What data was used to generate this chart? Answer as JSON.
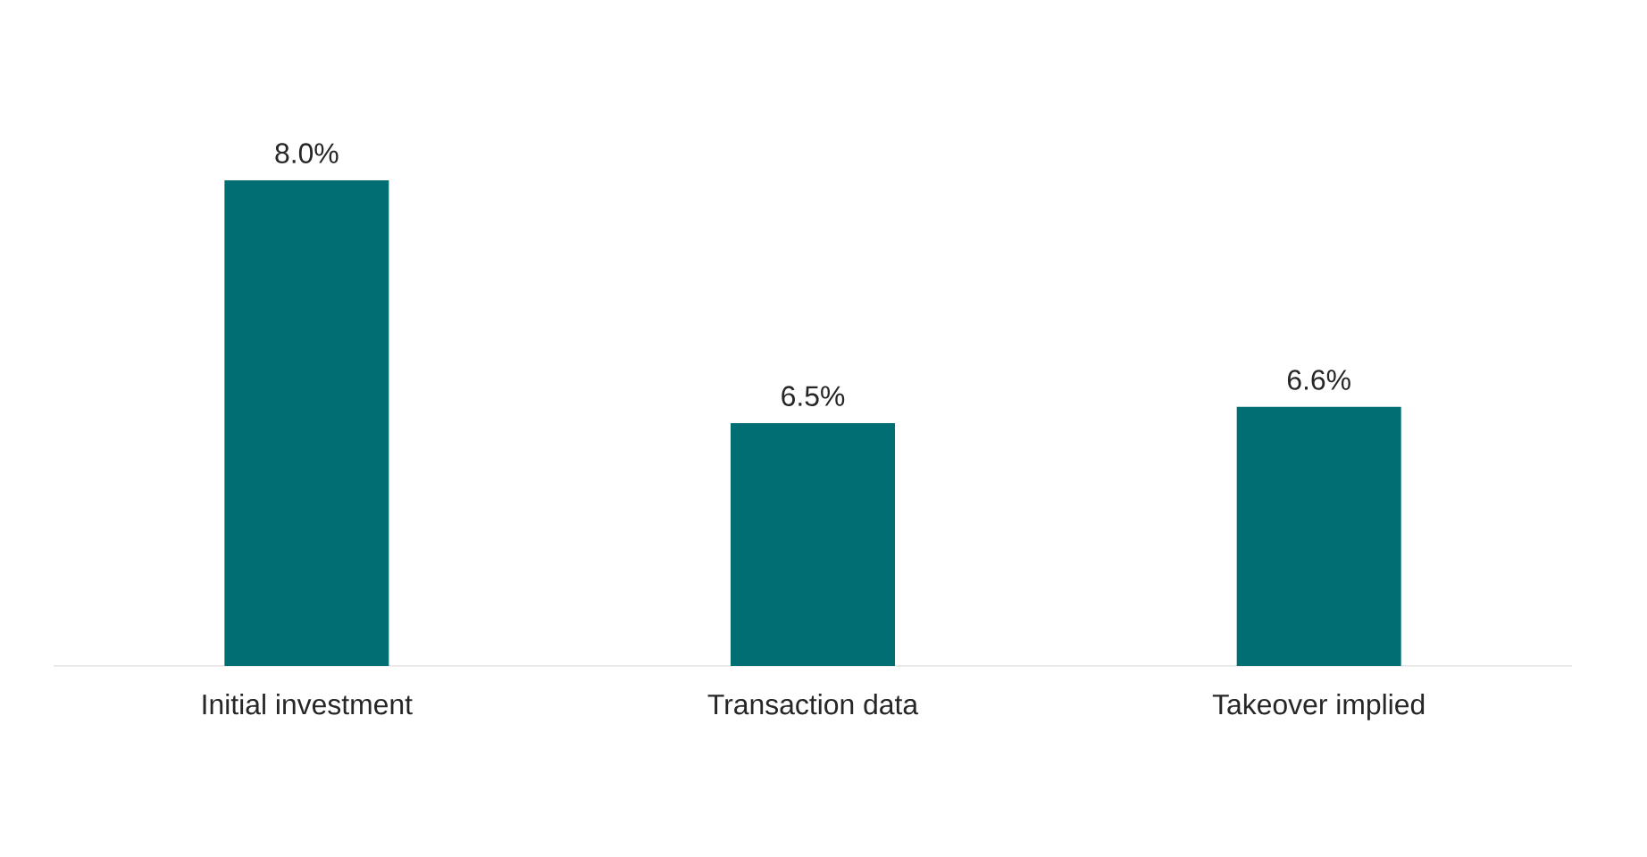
{
  "chart_data": {
    "type": "bar",
    "categories": [
      "Initial investment",
      "Transaction data",
      "Takeover implied"
    ],
    "values": [
      8.0,
      6.5,
      6.6
    ],
    "value_labels": [
      "8.0%",
      "6.5%",
      "6.6%"
    ],
    "color": "#006e72",
    "ylim": [
      5,
      8
    ]
  }
}
